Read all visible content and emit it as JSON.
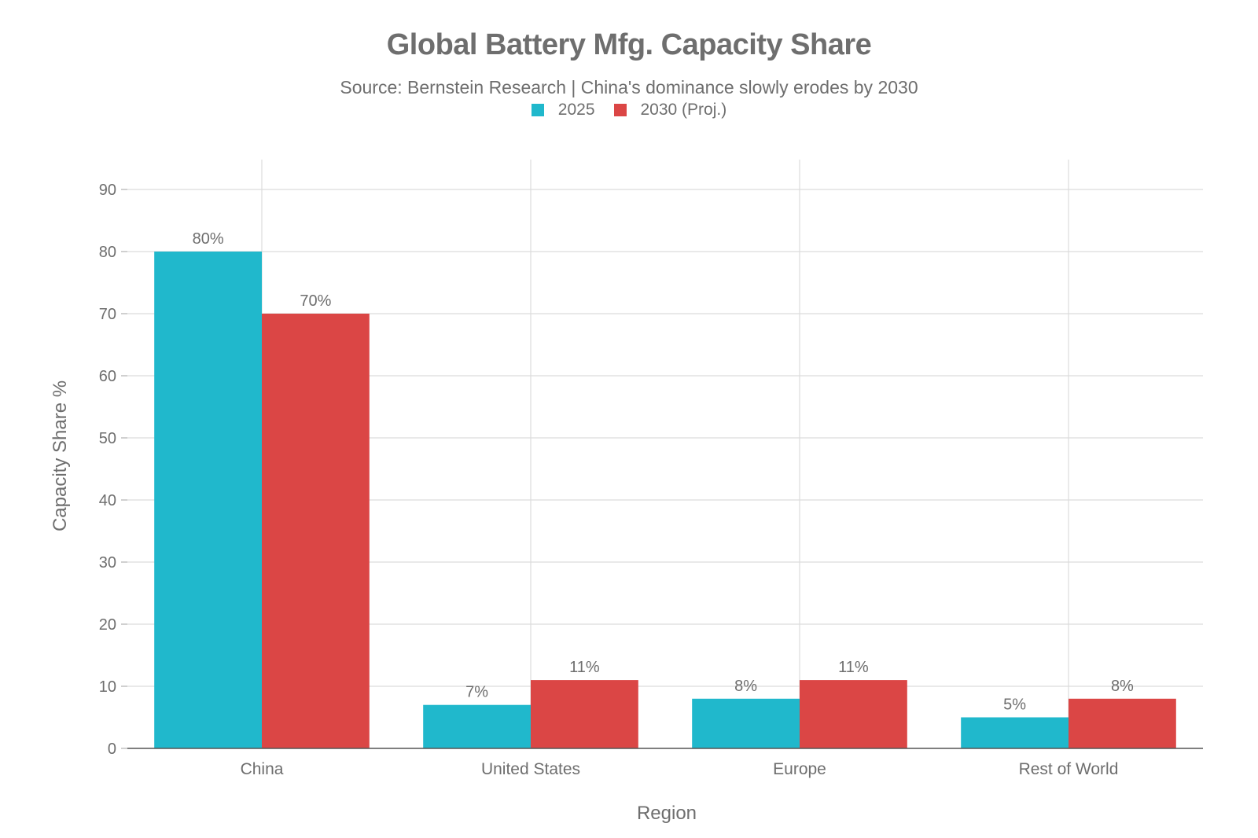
{
  "chart_data": {
    "type": "bar",
    "title": "Global Battery Mfg. Capacity Share",
    "subtitle": "Source: Bernstein Research | China's dominance slowly erodes by 2030",
    "xlabel": "Region",
    "ylabel": "Capacity Share %",
    "categories": [
      "China",
      "United States",
      "Europe",
      "Rest of World"
    ],
    "series": [
      {
        "name": "2025",
        "values": [
          80,
          7,
          8,
          5
        ],
        "labels": [
          "80%",
          "7%",
          "8%",
          "5%"
        ],
        "color": "#20b8cc"
      },
      {
        "name": "2030 (Proj.)",
        "values": [
          70,
          11,
          11,
          8
        ],
        "labels": [
          "70%",
          "11%",
          "11%",
          "8%"
        ],
        "color": "#db4645"
      }
    ],
    "ylim": [
      0,
      90
    ],
    "yticks": [
      0,
      10,
      20,
      30,
      40,
      50,
      60,
      70,
      80,
      90
    ],
    "grid": true,
    "legend_position": "top-center"
  }
}
